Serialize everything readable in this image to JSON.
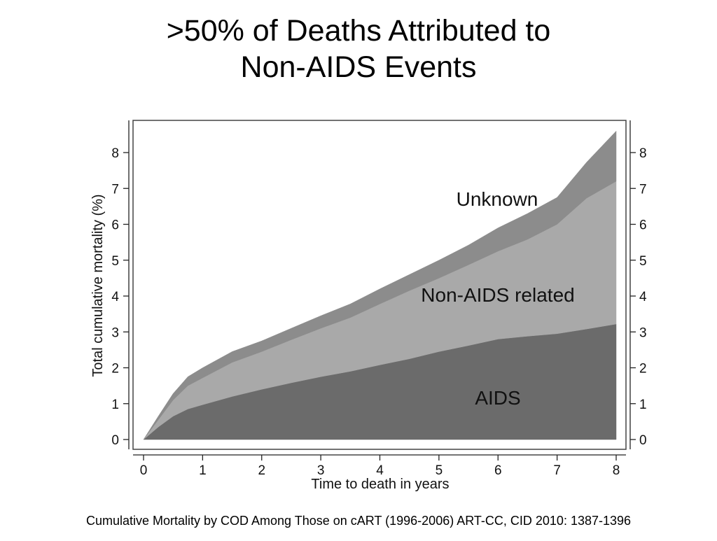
{
  "slide": {
    "title_line1": ">50% of Deaths Attributed to",
    "title_line2": "Non-AIDS Events",
    "caption": "Cumulative Mortality by COD Among Those on cART  (1996-2006)  ART-CC, CID 2010: 1387-1396"
  },
  "colors": {
    "aids": "#6b6b6b",
    "non_aids": "#a9a9a9",
    "unknown": "#8c8c8c",
    "axis": "#222222",
    "frame": "#444444"
  },
  "chart_data": {
    "type": "area",
    "stacked": true,
    "xlabel": "Time to death in years",
    "ylabel": "Total cumulative mortality (%)",
    "xlim": [
      0,
      8
    ],
    "ylim": [
      0,
      8.6
    ],
    "xticks": [
      "0",
      "1",
      "2",
      "3",
      "4",
      "5",
      "6",
      "7",
      "8"
    ],
    "yticks": [
      "0",
      "1",
      "2",
      "3",
      "4",
      "5",
      "6",
      "7",
      "8"
    ],
    "x": [
      0,
      0.25,
      0.5,
      0.75,
      1,
      1.5,
      2,
      2.5,
      3,
      3.5,
      4,
      4.5,
      5,
      5.5,
      6,
      6.5,
      7,
      7.5,
      8
    ],
    "series": [
      {
        "name": "AIDS",
        "color": "#6b6b6b",
        "values": [
          0,
          0.35,
          0.65,
          0.85,
          0.97,
          1.2,
          1.4,
          1.58,
          1.75,
          1.9,
          2.08,
          2.25,
          2.45,
          2.62,
          2.8,
          2.88,
          2.95,
          3.08,
          3.22
        ]
      },
      {
        "name": "Non-AIDS related",
        "color": "#a9a9a9",
        "values": [
          0,
          0.2,
          0.45,
          0.65,
          0.75,
          0.95,
          1.05,
          1.2,
          1.35,
          1.5,
          1.7,
          1.9,
          2.05,
          2.25,
          2.45,
          2.7,
          3.05,
          3.65,
          3.98
        ]
      },
      {
        "name": "Unknown",
        "color": "#8c8c8c",
        "values": [
          0,
          0.1,
          0.18,
          0.25,
          0.28,
          0.3,
          0.3,
          0.32,
          0.35,
          0.38,
          0.42,
          0.45,
          0.5,
          0.55,
          0.65,
          0.72,
          0.75,
          1.0,
          1.4
        ]
      }
    ]
  }
}
